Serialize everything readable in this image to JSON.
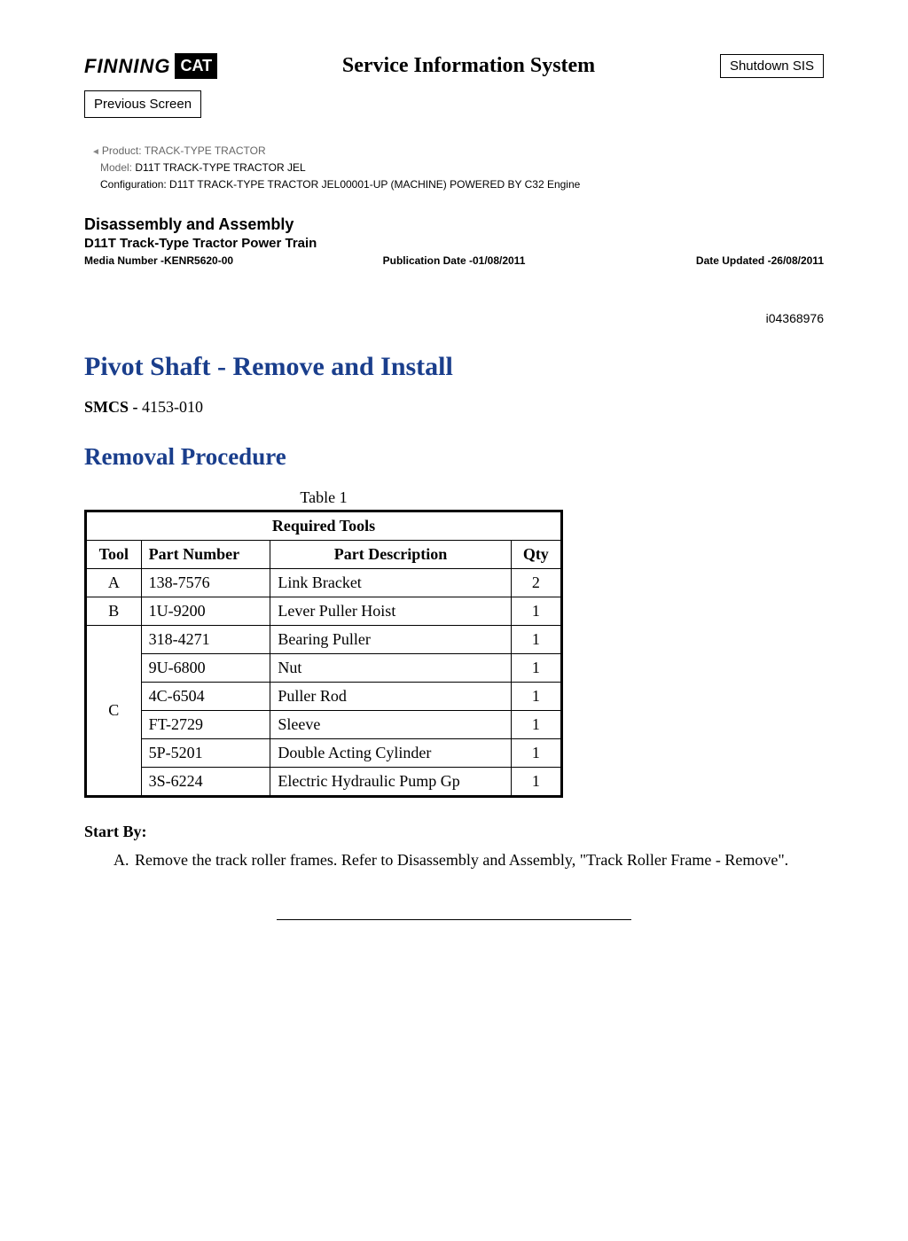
{
  "header": {
    "logo_text": "FINNING",
    "logo_badge": "CAT",
    "system_title": "Service Information System",
    "shutdown_label": "Shutdown SIS",
    "prev_label": "Previous Screen"
  },
  "meta": {
    "product_label": "Product:",
    "product_value": "  TRACK-TYPE TRACTOR",
    "model_label": "Model:",
    "model_value": "  D11T TRACK-TYPE TRACTOR JEL",
    "config_label": "Configuration:",
    "config_value": " D11T TRACK-TYPE TRACTOR JEL00001-UP (MACHINE) POWERED BY C32 Engine"
  },
  "doc": {
    "section_title": "Disassembly and Assembly",
    "section_sub": "D11T Track-Type Tractor Power Train",
    "media_label": "Media Number -",
    "media_value": "KENR5620-00",
    "pubdate_label": "Publication Date -",
    "pubdate_value": "01/08/2011",
    "updated_label": "Date Updated -",
    "updated_value": "26/08/2011",
    "doc_id": "i04368976",
    "title": "Pivot Shaft - Remove and Install",
    "smcs_label": "SMCS - ",
    "smcs_value": "4153-010",
    "proc_title": "Removal Procedure"
  },
  "table": {
    "caption": "Table 1",
    "header": "Required Tools",
    "col_tool": "Tool",
    "col_partnum": "Part Number",
    "col_partdesc": "Part Description",
    "col_qty": "Qty",
    "rows": {
      "a": {
        "tool": "A",
        "pn": "138-7576",
        "desc": "Link Bracket",
        "qty": "2"
      },
      "b": {
        "tool": "B",
        "pn": "1U-9200",
        "desc": "Lever Puller Hoist",
        "qty": "1"
      },
      "c": {
        "tool": "C",
        "r1": {
          "pn": "318-4271",
          "desc": "Bearing Puller",
          "qty": "1"
        },
        "r2": {
          "pn": "9U-6800",
          "desc": "Nut",
          "qty": "1"
        },
        "r3": {
          "pn": "4C-6504",
          "desc": "Puller Rod",
          "qty": "1"
        },
        "r4": {
          "pn": "FT-2729",
          "desc": "Sleeve",
          "qty": "1"
        },
        "r5": {
          "pn": "5P-5201",
          "desc": "Double Acting Cylinder",
          "qty": "1"
        },
        "r6": {
          "pn": "3S-6224",
          "desc": "Electric Hydraulic Pump Gp",
          "qty": "1"
        }
      }
    }
  },
  "startby": {
    "label": "Start By:",
    "item_a": "Remove the track roller frames. Refer to Disassembly and Assembly, \"Track Roller Frame - Remove\"."
  }
}
